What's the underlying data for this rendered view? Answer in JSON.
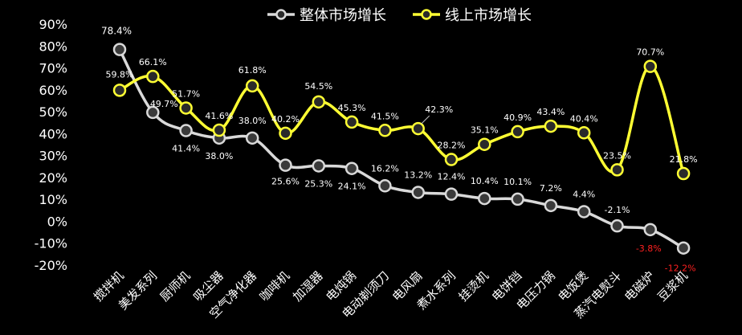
{
  "chart_data": {
    "type": "line",
    "title": "",
    "xlabel": "",
    "ylabel": "",
    "ylim": [
      -20,
      90
    ],
    "yticks": [
      "90%",
      "80%",
      "70%",
      "60%",
      "50%",
      "40%",
      "30%",
      "20%",
      "10%",
      "0%",
      "-10%",
      "-20%"
    ],
    "grid": false,
    "legend_position": "top-center",
    "colors": {
      "background": "#000000",
      "overall": "#D9D9D9",
      "online": "#FFFF33",
      "text": "#FFFFFF",
      "negative_label": "#FF2020"
    },
    "categories": [
      "搅拌机",
      "美发系列",
      "厨师机",
      "吸尘器",
      "空气净化器",
      "咖啡机",
      "加湿器",
      "电炖锅",
      "电动剃须刀",
      "电风扇",
      "煮水系列",
      "挂烫机",
      "电饼铛",
      "电压力锅",
      "电饭煲",
      "蒸汽电熨斗",
      "电磁炉",
      "豆浆机"
    ],
    "series": [
      {
        "name": "整体市场增长",
        "values": [
          78.4,
          49.7,
          41.4,
          38.0,
          38.0,
          25.6,
          25.3,
          24.1,
          16.2,
          13.2,
          12.4,
          10.4,
          10.1,
          7.2,
          4.4,
          -2.1,
          -3.8,
          -12.2
        ],
        "labels": [
          "78.4%",
          "49.7%",
          "41.4%",
          "38.0%",
          "38.0%",
          "25.6%",
          "25.3%",
          "24.1%",
          "16.2%",
          "13.2%",
          "12.4%",
          "10.4%",
          "10.1%",
          "7.2%",
          "4.4%",
          "-2.1%",
          "-3.8%",
          "-12.2%"
        ]
      },
      {
        "name": "线上市场增长",
        "values": [
          59.8,
          66.1,
          51.7,
          41.6,
          61.8,
          40.2,
          54.5,
          45.3,
          41.5,
          42.3,
          28.2,
          35.1,
          40.9,
          43.4,
          40.4,
          23.5,
          70.7,
          21.8
        ],
        "labels": [
          "59.8%",
          "66.1%",
          "51.7%",
          "41.6%",
          "61.8%",
          "40.2%",
          "54.5%",
          "45.3%",
          "41.5%",
          "42.3%",
          "28.2%",
          "35.1%",
          "40.9%",
          "43.4%",
          "40.4%",
          "23.5%",
          "70.7%",
          "21.8%"
        ]
      }
    ]
  }
}
